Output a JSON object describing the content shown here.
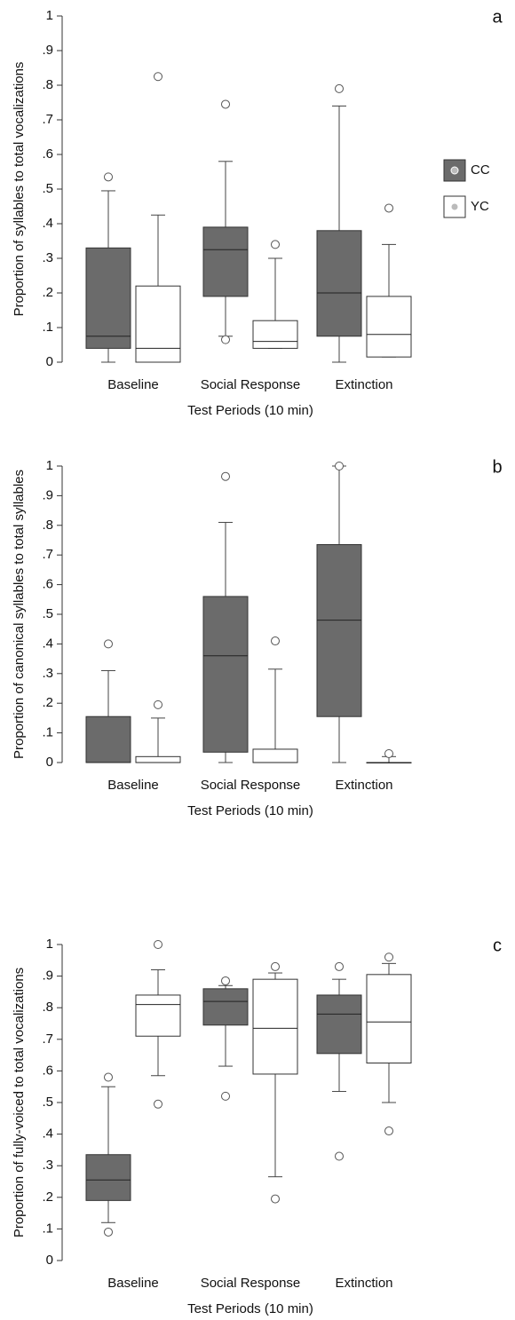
{
  "chart_data": [
    {
      "type": "box",
      "panel_label": "a",
      "ylabel": "Proportion of syllables to total vocalizations",
      "xlabel": "Test Periods (10 min)",
      "categories": [
        "Baseline",
        "Social Response",
        "Extinction"
      ],
      "ylim": [
        0,
        1
      ],
      "yticks": [
        0,
        {
          "value": 0.1,
          "label": ".1"
        },
        {
          "value": 0.2,
          "label": ".2"
        },
        {
          "value": 0.3,
          "label": ".3"
        },
        {
          "value": 0.4,
          "label": ".4"
        },
        {
          "value": 0.5,
          "label": ".5"
        },
        {
          "value": 0.6,
          "label": ".6"
        },
        {
          "value": 0.7,
          "label": ".7"
        },
        {
          "value": 0.8,
          "label": ".8"
        },
        {
          "value": 0.9,
          "label": ".9"
        },
        1
      ],
      "series": [
        {
          "name": "CC",
          "color": "#6b6b6b",
          "boxes": [
            {
              "min": 0,
              "q1": 0.04,
              "median": 0.075,
              "q3": 0.33,
              "max": 0.495,
              "outliers": [
                0.535
              ]
            },
            {
              "min": 0.075,
              "q1": 0.19,
              "median": 0.325,
              "q3": 0.39,
              "max": 0.58,
              "outliers": [
                0.745,
                0.065
              ]
            },
            {
              "min": 0,
              "q1": 0.075,
              "median": 0.2,
              "q3": 0.38,
              "max": 0.74,
              "outliers": [
                0.79
              ]
            }
          ]
        },
        {
          "name": "YC",
          "color": "#ffffff",
          "boxes": [
            {
              "min": 0,
              "q1": 0,
              "median": 0.04,
              "q3": 0.22,
              "max": 0.425,
              "outliers": [
                0.825
              ]
            },
            {
              "min": 0.04,
              "q1": 0.04,
              "median": 0.06,
              "q3": 0.12,
              "max": 0.3,
              "outliers": [
                0.34
              ]
            },
            {
              "min": 0.015,
              "q1": 0.015,
              "median": 0.08,
              "q3": 0.19,
              "max": 0.34,
              "outliers": [
                0.445
              ]
            }
          ]
        }
      ]
    },
    {
      "type": "box",
      "panel_label": "b",
      "ylabel": "Proportion of canonical syllables to total syllables",
      "xlabel": "Test Periods (10 min)",
      "categories": [
        "Baseline",
        "Social Response",
        "Extinction"
      ],
      "ylim": [
        0,
        1
      ],
      "yticks": [
        0,
        {
          "value": 0.1,
          "label": ".1"
        },
        {
          "value": 0.2,
          "label": ".2"
        },
        {
          "value": 0.3,
          "label": ".3"
        },
        {
          "value": 0.4,
          "label": ".4"
        },
        {
          "value": 0.5,
          "label": ".5"
        },
        {
          "value": 0.6,
          "label": ".6"
        },
        {
          "value": 0.7,
          "label": ".7"
        },
        {
          "value": 0.8,
          "label": ".8"
        },
        {
          "value": 0.9,
          "label": ".9"
        },
        1
      ],
      "series": [
        {
          "color": "#6b6b6b",
          "boxes": [
            {
              "min": 0,
              "q1": 0,
              "median": 0,
              "q3": 0.155,
              "max": 0.31,
              "outliers": [
                0.4
              ]
            },
            {
              "min": 0,
              "q1": 0.035,
              "median": 0.36,
              "q3": 0.56,
              "max": 0.81,
              "outliers": [
                0.965
              ]
            },
            {
              "min": 0,
              "q1": 0.155,
              "median": 0.48,
              "q3": 0.735,
              "max": 1,
              "outliers": [
                1
              ]
            }
          ]
        },
        {
          "color": "#ffffff",
          "boxes": [
            {
              "min": 0,
              "q1": 0,
              "median": 0,
              "q3": 0.02,
              "max": 0.15,
              "outliers": [
                0.195
              ]
            },
            {
              "min": 0,
              "q1": 0,
              "median": 0,
              "q3": 0.045,
              "max": 0.315,
              "outliers": [
                0.41
              ]
            },
            {
              "min": 0,
              "q1": 0,
              "median": 0,
              "q3": 0,
              "max": 0.02,
              "outliers": [
                0.03
              ]
            }
          ]
        }
      ]
    },
    {
      "type": "box",
      "panel_label": "c",
      "ylabel": "Proportion of fully-voiced to total vocalizations",
      "xlabel": "Test Periods (10 min)",
      "categories": [
        "Baseline",
        "Social Response",
        "Extinction"
      ],
      "ylim": [
        0,
        1
      ],
      "yticks": [
        0,
        {
          "value": 0.1,
          "label": ".1"
        },
        {
          "value": 0.2,
          "label": ".2"
        },
        {
          "value": 0.3,
          "label": ".3"
        },
        {
          "value": 0.4,
          "label": ".4"
        },
        {
          "value": 0.5,
          "label": ".5"
        },
        {
          "value": 0.6,
          "label": ".6"
        },
        {
          "value": 0.7,
          "label": ".7"
        },
        {
          "value": 0.8,
          "label": ".8"
        },
        {
          "value": 0.9,
          "label": ".9"
        },
        1
      ],
      "series": [
        {
          "color": "#6b6b6b",
          "boxes": [
            {
              "min": 0.12,
              "q1": 0.19,
              "median": 0.255,
              "q3": 0.335,
              "max": 0.55,
              "outliers": [
                0.58,
                0.09
              ]
            },
            {
              "min": 0.615,
              "q1": 0.745,
              "median": 0.82,
              "q3": 0.86,
              "max": 0.87,
              "outliers": [
                0.885,
                0.52
              ]
            },
            {
              "min": 0.535,
              "q1": 0.655,
              "median": 0.78,
              "q3": 0.84,
              "max": 0.89,
              "outliers": [
                0.93,
                0.33
              ]
            }
          ]
        },
        {
          "color": "#ffffff",
          "boxes": [
            {
              "min": 0.585,
              "q1": 0.71,
              "median": 0.81,
              "q3": 0.84,
              "max": 0.92,
              "outliers": [
                1,
                0.495
              ]
            },
            {
              "min": 0.265,
              "q1": 0.59,
              "median": 0.735,
              "q3": 0.89,
              "max": 0.91,
              "outliers": [
                0.93,
                0.195
              ]
            },
            {
              "min": 0.5,
              "q1": 0.625,
              "median": 0.755,
              "q3": 0.905,
              "max": 0.94,
              "outliers": [
                0.96,
                0.41
              ]
            }
          ]
        }
      ]
    }
  ]
}
